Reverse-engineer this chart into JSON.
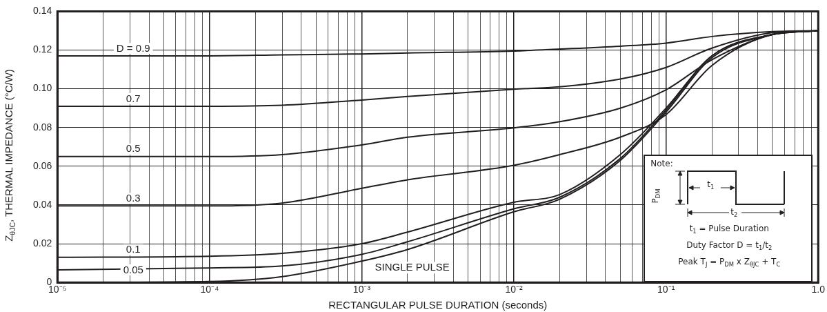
{
  "chart_data": {
    "type": "line",
    "xlabel": "RECTANGULAR PULSE DURATION (seconds)",
    "ylabel": "Z$_{θJC}$, THERMAL IMPEDANCE (°C/W)",
    "log": "x",
    "grid": true,
    "legend": false,
    "marker": "none",
    "line_style": "solid",
    "xlim": [
      1e-05,
      1
    ],
    "xticks": [
      {
        "value": 1e-05,
        "label": "10⁻⁵"
      },
      {
        "value": 0.0001,
        "label": "10⁻⁴"
      },
      {
        "value": 0.001,
        "label": "10⁻³"
      },
      {
        "value": 0.01,
        "label": "10⁻²"
      },
      {
        "value": 0.1,
        "label": "10⁻¹"
      },
      {
        "value": 1,
        "label": "1.0"
      }
    ],
    "ylim": [
      0,
      0.14
    ],
    "yticks": [
      0,
      0.02,
      0.04,
      0.06,
      0.08,
      {
        "value": 0.1,
        "label": "0.10"
      },
      0.12,
      0.14
    ],
    "x": [
      1e-05,
      0.0001,
      0.0003,
      0.001,
      0.002,
      0.01,
      0.02,
      0.05,
      0.1,
      0.2,
      0.5,
      1
    ],
    "series": [
      {
        "name": "D = 0.9",
        "color": "#231f20",
        "values": [
          0.117,
          0.117,
          0.1175,
          0.118,
          0.1185,
          0.1195,
          0.1205,
          0.122,
          0.1236,
          0.127,
          0.1295,
          0.13
        ]
      },
      {
        "name": "0.7",
        "color": "#231f20",
        "values": [
          0.091,
          0.091,
          0.0915,
          0.0942,
          0.096,
          0.0998,
          0.101,
          0.105,
          0.111,
          0.121,
          0.129,
          0.13
        ]
      },
      {
        "name": "0.5",
        "color": "#231f20",
        "values": [
          0.065,
          0.065,
          0.066,
          0.071,
          0.075,
          0.0798,
          0.083,
          0.09,
          0.0995,
          0.115,
          0.128,
          0.13
        ]
      },
      {
        "name": "0.3",
        "color": "#231f20",
        "values": [
          0.0395,
          0.0395,
          0.041,
          0.0486,
          0.053,
          0.0605,
          0.066,
          0.075,
          0.0867,
          0.112,
          0.128,
          0.13
        ]
      },
      {
        "name": "0.1",
        "color": "#231f20",
        "values": [
          0.013,
          0.0135,
          0.015,
          0.02,
          0.026,
          0.0414,
          0.0454,
          0.066,
          0.09,
          0.117,
          0.128,
          0.13
        ]
      },
      {
        "name": "0.05",
        "color": "#231f20",
        "values": [
          0.0065,
          0.0075,
          0.0085,
          0.0145,
          0.021,
          0.038,
          0.044,
          0.064,
          0.089,
          0.117,
          0.128,
          0.13
        ]
      },
      {
        "name": "SINGLE PULSE",
        "color": "#231f20",
        "values": [
          0,
          0.0005,
          0.003,
          0.011,
          0.017,
          0.0365,
          0.043,
          0.063,
          0.088,
          0.116,
          0.128,
          0.13
        ]
      }
    ],
    "annotations": [
      "Note:",
      "P$_{DM}$",
      "t$_{1}$",
      "t$_{2}$",
      "t$_{1}$ = Pulse Duration",
      "Duty Factor D = t$_{1}$/t$_{2}$",
      "Peak T$_{J}$ = P$_{DM}$ x Z$_{θJC}$ + T$_{C}$"
    ]
  }
}
